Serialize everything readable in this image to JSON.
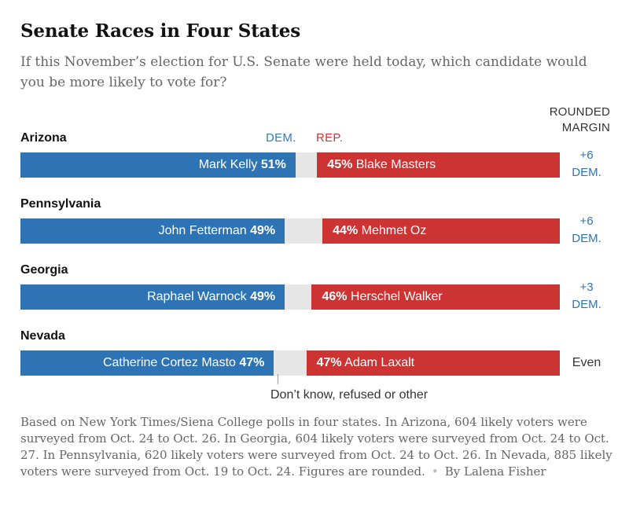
{
  "chart_data": {
    "type": "bar",
    "title": "Senate Races in Four States",
    "subtitle": "If this November’s election for U.S. Senate were held today, which candidate would you be more likely to vote for?",
    "headers": {
      "dem": "DEM.",
      "rep": "REP.",
      "margin_line1": "ROUNDED",
      "margin_line2": "MARGIN"
    },
    "races": [
      {
        "state": "Arizona",
        "dem_name": "Mark Kelly",
        "dem_pct": 51,
        "dem_pct_label": "51%",
        "rep_name": "Blake Masters",
        "rep_pct": 45,
        "rep_pct_label": "45%",
        "margin_value": "+6",
        "margin_party": "DEM."
      },
      {
        "state": "Pennsylvania",
        "dem_name": "John Fetterman",
        "dem_pct": 49,
        "dem_pct_label": "49%",
        "rep_name": "Mehmet Oz",
        "rep_pct": 44,
        "rep_pct_label": "44%",
        "margin_value": "+6",
        "margin_party": "DEM."
      },
      {
        "state": "Georgia",
        "dem_name": "Raphael Warnock",
        "dem_pct": 49,
        "dem_pct_label": "49%",
        "rep_name": "Herschel Walker",
        "rep_pct": 46,
        "rep_pct_label": "46%",
        "margin_value": "+3",
        "margin_party": "DEM."
      },
      {
        "state": "Nevada",
        "dem_name": "Catherine Cortez Masto",
        "dem_pct": 47,
        "dem_pct_label": "47%",
        "rep_name": "Adam Laxalt",
        "rep_pct": 47,
        "rep_pct_label": "47%",
        "margin_value": "Even",
        "margin_party": ""
      }
    ],
    "other_label": "Don’t know, refused or other",
    "colors": {
      "dem": "#2e74b5",
      "rep": "#cc3333",
      "other": "#e6e6e6"
    }
  },
  "footnote": {
    "text": "Based on New York Times/Siena College polls in four states. In Arizona, 604 likely voters were surveyed from Oct. 24 to Oct. 26. In Georgia, 604 likely voters were surveyed from Oct. 24 to Oct. 27. In Pennsylvania, 620 likely voters were surveyed from Oct. 24 to Oct. 26. In Nevada, 885 likely voters were surveyed from Oct. 19 to Oct. 24. Figures are rounded.",
    "separator": "•",
    "byline": "By Lalena Fisher"
  }
}
